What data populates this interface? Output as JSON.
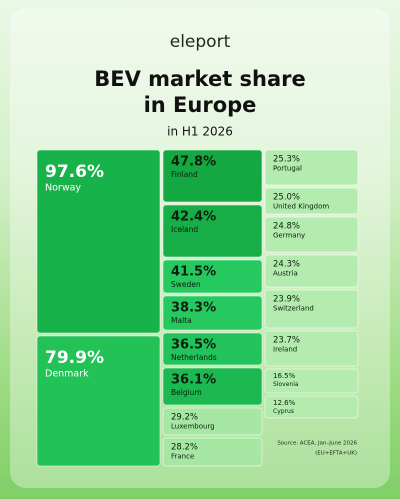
{
  "chart_data": {
    "type": "treemap",
    "brand": "eleport",
    "title": [
      "BEV market share",
      "in Europe"
    ],
    "subtitle": "in H1 2026",
    "source": [
      "Source: ACEA, Jan–June 2026",
      "(EU+EFTA+UK)"
    ],
    "categories": [
      "Norway",
      "Denmark",
      "Finland",
      "Iceland",
      "Sweden",
      "Malta",
      "Netherlands",
      "Belgium",
      "Luxembourg",
      "France",
      "Portugal",
      "United Kingdom",
      "Germany",
      "Austria",
      "Switzerland",
      "Ireland",
      "Slovenia",
      "Cyprus"
    ],
    "values": [
      97.6,
      79.9,
      47.8,
      42.4,
      41.5,
      38.3,
      36.5,
      36.1,
      29.2,
      28.2,
      25.3,
      25.0,
      24.8,
      24.3,
      23.9,
      23.7,
      16.5,
      12.6
    ],
    "value_labels": [
      "97.6%",
      "79.9%",
      "47.8%",
      "42.4%",
      "41.5%",
      "38.3%",
      "36.5%",
      "36.1%",
      "29.2%",
      "28.2%",
      "25.3%",
      "25.0%",
      "24.8%",
      "24.3%",
      "23.9%",
      "23.7%",
      "16.5%",
      "12.6%"
    ],
    "colors": [
      "#18b24a",
      "#23c257",
      "#14a843",
      "#17ad47",
      "#26c960",
      "#26c960",
      "#22c35c",
      "#1cb951",
      "#a6e7a4",
      "#a6e7a4",
      "#b3ecae",
      "#b3ecae",
      "#b3ecae",
      "#b3ecae",
      "#b3ecae",
      "#b3ecae",
      "#b3ecae",
      "#b3ecae"
    ]
  }
}
